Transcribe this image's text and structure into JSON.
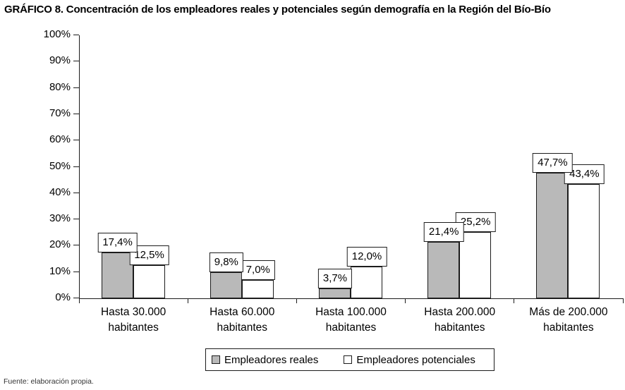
{
  "title": "GRÁFICO 8. Concentración de los empleadores reales y potenciales según demografía en la Región del Bío-Bío",
  "source_note": "Fuente: elaboración propia.",
  "chart_data": {
    "type": "bar",
    "title": "GRÁFICO 8. Concentración de los empleadores reales y potenciales según demografía en la Región del Bío-Bío",
    "categories": [
      "Hasta 30.000\nhabitantes",
      "Hasta 60.000\nhabitantes",
      "Hasta 100.000\nhabitantes",
      "Hasta 200.000\nhabitantes",
      "Más de 200.000\nhabitantes"
    ],
    "series": [
      {
        "name": "Empleadores reales",
        "values": [
          17.4,
          9.8,
          3.7,
          21.4,
          47.7
        ],
        "labels": [
          "17,4%",
          "9,8%",
          "3,7%",
          "21,4%",
          "47,7%"
        ],
        "color": "#b9b9b9"
      },
      {
        "name": "Empleadores potenciales",
        "values": [
          12.5,
          7.0,
          12.0,
          25.2,
          43.4
        ],
        "labels": [
          "12,5%",
          "7,0%",
          "12,0%",
          "25,2%",
          "43,4%"
        ],
        "color": "#ffffff"
      }
    ],
    "xlabel": "",
    "ylabel": "",
    "ylim": [
      0,
      100
    ],
    "ytick_step": 10,
    "ytick_labels": [
      "0%",
      "10%",
      "20%",
      "30%",
      "40%",
      "50%",
      "60%",
      "70%",
      "80%",
      "90%",
      "100%"
    ],
    "value_suffix": "%",
    "decimal_separator": ",",
    "grid": false,
    "legend_position": "bottom",
    "bar_border_color": "#1c1c1c"
  }
}
